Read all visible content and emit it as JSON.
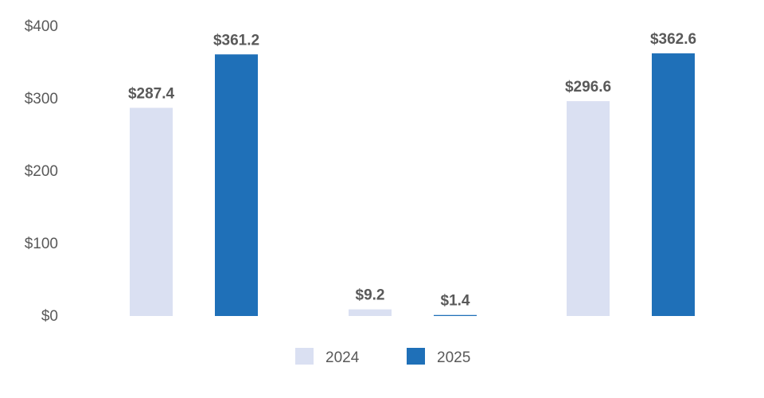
{
  "chart_data": {
    "type": "bar",
    "categories": [
      "",
      "",
      ""
    ],
    "series": [
      {
        "name": "2024",
        "color": "#dae0f2",
        "values": [
          287.4,
          9.2,
          296.6
        ],
        "labels": [
          "$287.4",
          "$9.2",
          "$296.6"
        ]
      },
      {
        "name": "2025",
        "color": "#1f70b8",
        "values": [
          361.2,
          1.4,
          362.6
        ],
        "labels": [
          "$361.2",
          "$1.4",
          "$362.6"
        ]
      }
    ],
    "ylim": [
      0,
      400
    ],
    "yticks": [
      0,
      100,
      200,
      300,
      400
    ],
    "ytick_labels": [
      "$0",
      "$100",
      "$200",
      "$300",
      "$400"
    ],
    "title": "",
    "xlabel": "",
    "ylabel": "",
    "grid": false,
    "legend_position": "bottom"
  }
}
